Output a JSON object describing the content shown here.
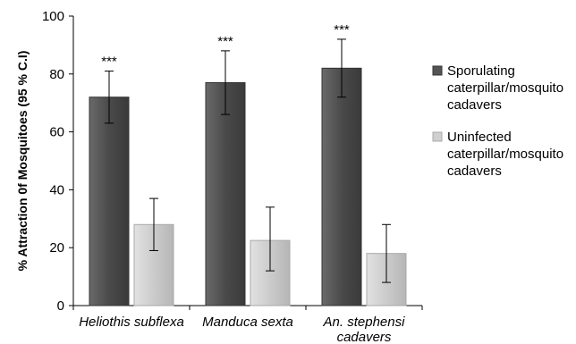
{
  "chart_data": {
    "type": "bar",
    "ylabel": "% Attraction 0f Mosquitoes (95 % C.I)",
    "xlabel": "",
    "ylim": [
      0,
      100
    ],
    "yticks": [
      0,
      20,
      40,
      60,
      80,
      100
    ],
    "categories": [
      [
        "Heliothis subflexa"
      ],
      [
        "Manduca sexta"
      ],
      [
        "An. stephensi",
        "cadavers"
      ]
    ],
    "series": [
      {
        "name": [
          "Sporulating",
          "caterpillar/mosquito",
          "cadavers"
        ],
        "color": "#545454",
        "values": [
          72,
          77,
          82
        ],
        "ci_low": [
          63,
          66,
          72
        ],
        "ci_high": [
          81,
          88,
          92
        ],
        "labels": [
          "***",
          "***",
          "***"
        ]
      },
      {
        "name": [
          "Uninfected",
          "caterpillar/mosquito",
          "cadavers"
        ],
        "color": "#cfcfcf",
        "values": [
          28,
          22.5,
          18
        ],
        "ci_low": [
          19,
          12,
          8
        ],
        "ci_high": [
          37,
          34,
          28
        ],
        "labels": [
          "",
          "",
          ""
        ]
      }
    ],
    "grid": false,
    "legend_position": "right"
  }
}
